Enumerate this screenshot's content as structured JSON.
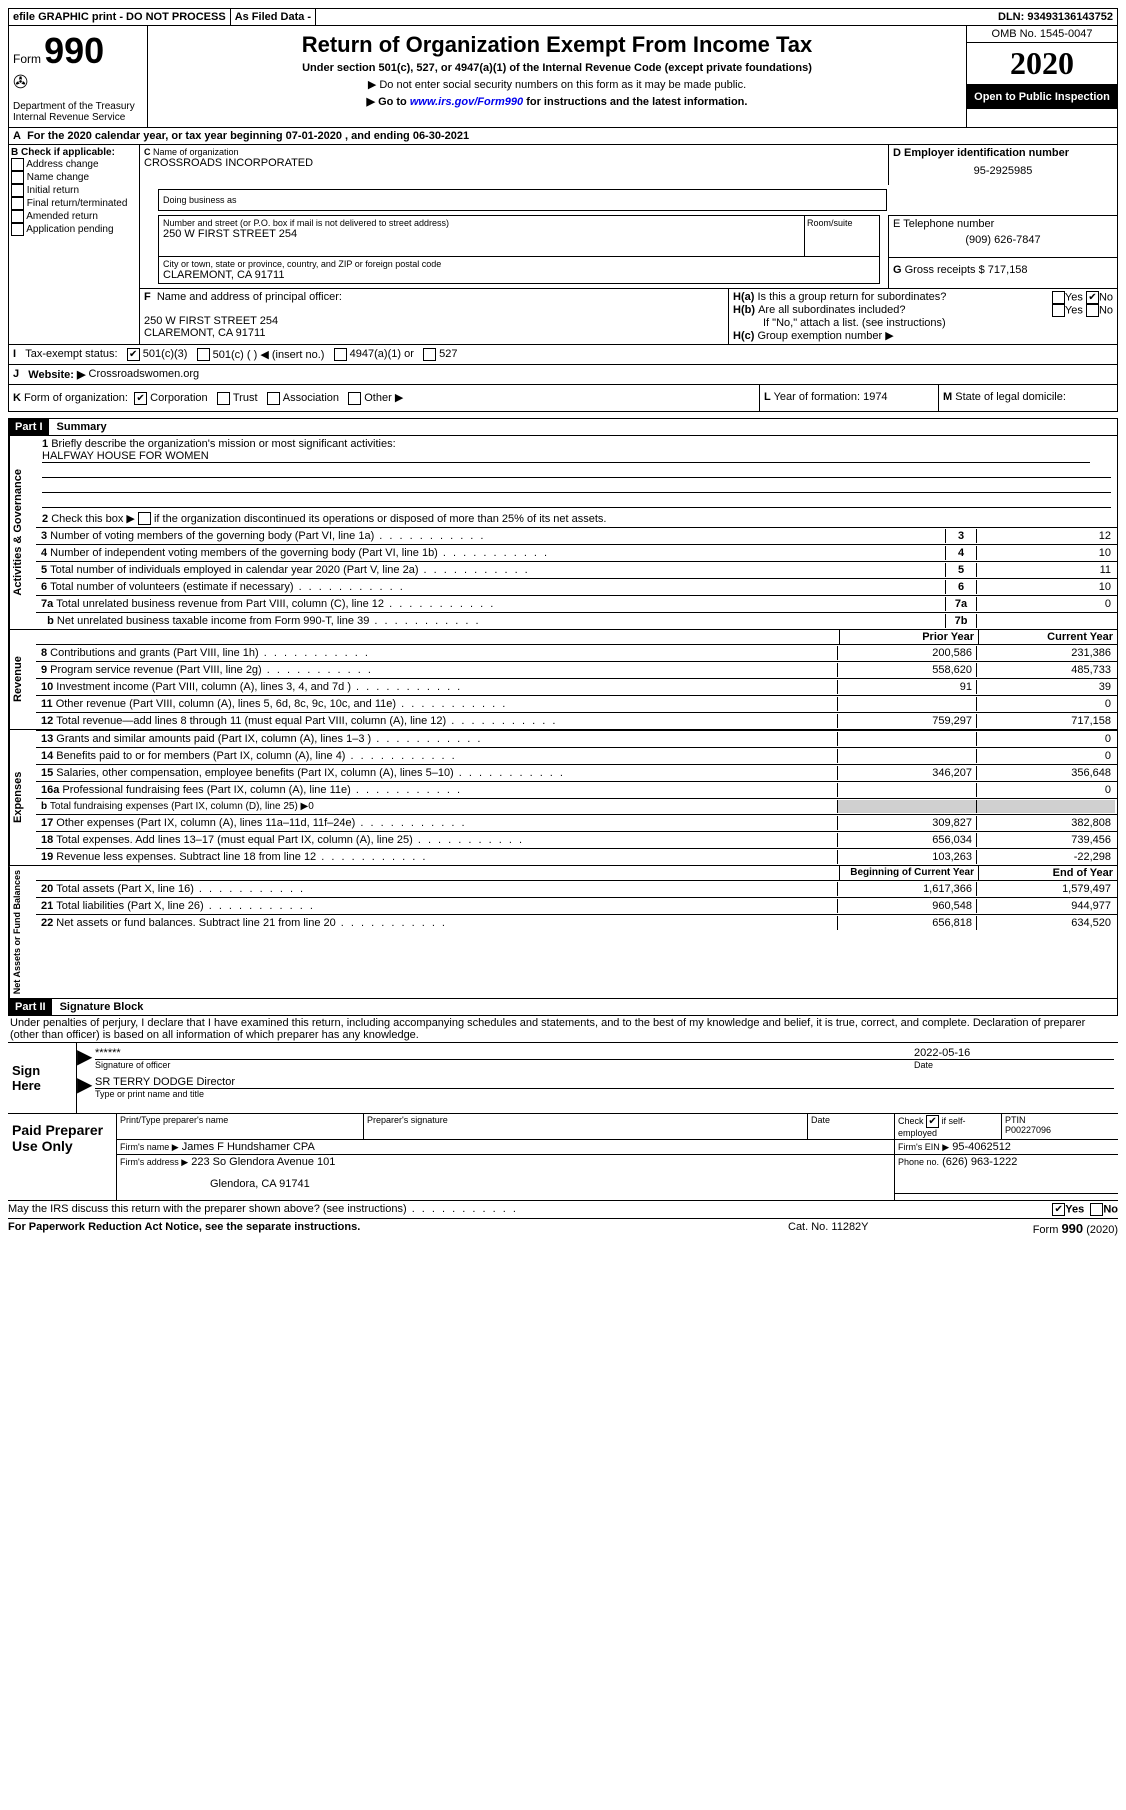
{
  "topbar": {
    "efile": "efile GRAPHIC print - DO NOT PROCESS",
    "asfiled": "As Filed Data -",
    "dln_label": "DLN:",
    "dln": "93493136143752"
  },
  "header": {
    "form_label": "Form",
    "form_no": "990",
    "dept1": "Department of the Treasury",
    "dept2": "Internal Revenue Service",
    "title": "Return of Organization Exempt From Income Tax",
    "sub1": "Under section 501(c), 527, or 4947(a)(1) of the Internal Revenue Code (except private foundations)",
    "sub2": "▶ Do not enter social security numbers on this form as it may be made public.",
    "sub3": "▶ Go to",
    "irs_link": "www.irs.gov/Form990",
    "sub3b": "for instructions and the latest information.",
    "omb": "OMB No. 1545-0047",
    "year": "2020",
    "open": "Open to Public Inspection"
  },
  "periodA": {
    "text": "For the 2020 calendar year, or tax year beginning 07-01-2020   , and ending 06-30-2021"
  },
  "boxB": {
    "label": "Check if applicable:",
    "opts": [
      "Address change",
      "Name change",
      "Initial return",
      "Final return/terminated",
      "Amended return",
      "Application pending"
    ]
  },
  "boxC": {
    "name_label": "Name of organization",
    "name": "CROSSROADS INCORPORATED",
    "dba_label": "Doing business as",
    "addr_label": "Number and street (or P.O. box if mail is not delivered to street address)",
    "room_label": "Room/suite",
    "addr": "250 W FIRST STREET 254",
    "city_label": "City or town, state or province, country, and ZIP or foreign postal code",
    "city": "CLAREMONT, CA  91711"
  },
  "boxD": {
    "label": "Employer identification number",
    "val": "95-2925985"
  },
  "boxE": {
    "label": "Telephone number",
    "val": "(909) 626-7847"
  },
  "boxG": {
    "label": "Gross receipts $",
    "val": "717,158"
  },
  "boxF": {
    "label": "Name and address of principal officer:",
    "line1": "250 W FIRST STREET 254",
    "line2": "CLAREMONT, CA  91711"
  },
  "boxH": {
    "a": "Is this a group return for subordinates?",
    "b": "Are all subordinates included?",
    "note": "If \"No,\" attach a list. (see instructions)",
    "c": "Group exemption number ▶",
    "yes": "Yes",
    "no": "No"
  },
  "boxI": {
    "label": "Tax-exempt status:",
    "o1": "501(c)(3)",
    "o2": "501(c) (   ) ◀ (insert no.)",
    "o3": "4947(a)(1) or",
    "o4": "527"
  },
  "boxJ": {
    "label": "Website: ▶",
    "val": "Crossroadswomen.org"
  },
  "boxK": {
    "label": "Form of organization:",
    "o1": "Corporation",
    "o2": "Trust",
    "o3": "Association",
    "o4": "Other ▶"
  },
  "boxL": {
    "label": "Year of formation:",
    "val": "1974"
  },
  "boxM": {
    "label": "State of legal domicile:"
  },
  "partI": {
    "title": "Part I",
    "heading": "Summary"
  },
  "summary": {
    "q1": "Briefly describe the organization's mission or most significant activities:",
    "mission": "HALFWAY HOUSE FOR WOMEN",
    "q2": "Check this box ▶",
    "q2b": "if the organization discontinued its operations or disposed of more than 25% of its net assets.",
    "lines": {
      "3": {
        "t": "Number of voting members of the governing body (Part VI, line 1a)",
        "v": "12"
      },
      "4": {
        "t": "Number of independent voting members of the governing body (Part VI, line 1b)",
        "v": "10"
      },
      "5": {
        "t": "Total number of individuals employed in calendar year 2020 (Part V, line 2a)",
        "v": "11"
      },
      "6": {
        "t": "Total number of volunteers (estimate if necessary)",
        "v": "10"
      },
      "7a": {
        "t": "Total unrelated business revenue from Part VIII, column (C), line 12",
        "v": "0"
      },
      "7b": {
        "t": "Net unrelated business taxable income from Form 990-T, line 39",
        "v": ""
      }
    }
  },
  "revenue": {
    "header_prior": "Prior Year",
    "header_curr": "Current Year",
    "rows": [
      {
        "n": "8",
        "t": "Contributions and grants (Part VIII, line 1h)",
        "p": "200,586",
        "c": "231,386"
      },
      {
        "n": "9",
        "t": "Program service revenue (Part VIII, line 2g)",
        "p": "558,620",
        "c": "485,733"
      },
      {
        "n": "10",
        "t": "Investment income (Part VIII, column (A), lines 3, 4, and 7d )",
        "p": "91",
        "c": "39"
      },
      {
        "n": "11",
        "t": "Other revenue (Part VIII, column (A), lines 5, 6d, 8c, 9c, 10c, and 11e)",
        "p": "",
        "c": "0"
      },
      {
        "n": "12",
        "t": "Total revenue—add lines 8 through 11 (must equal Part VIII, column (A), line 12)",
        "p": "759,297",
        "c": "717,158"
      }
    ]
  },
  "expenses": {
    "rows": [
      {
        "n": "13",
        "t": "Grants and similar amounts paid (Part IX, column (A), lines 1–3 )",
        "p": "",
        "c": "0"
      },
      {
        "n": "14",
        "t": "Benefits paid to or for members (Part IX, column (A), line 4)",
        "p": "",
        "c": "0"
      },
      {
        "n": "15",
        "t": "Salaries, other compensation, employee benefits (Part IX, column (A), lines 5–10)",
        "p": "346,207",
        "c": "356,648"
      },
      {
        "n": "16a",
        "t": "Professional fundraising fees (Part IX, column (A), line 11e)",
        "p": "",
        "c": "0"
      },
      {
        "n": "b",
        "t": "Total fundraising expenses (Part IX, column (D), line 25) ▶0",
        "p": "",
        "c": "",
        "shadeRight": true,
        "small": true
      },
      {
        "n": "17",
        "t": "Other expenses (Part IX, column (A), lines 11a–11d, 11f–24e)",
        "p": "309,827",
        "c": "382,808"
      },
      {
        "n": "18",
        "t": "Total expenses. Add lines 13–17 (must equal Part IX, column (A), line 25)",
        "p": "656,034",
        "c": "739,456"
      },
      {
        "n": "19",
        "t": "Revenue less expenses. Subtract line 18 from line 12",
        "p": "103,263",
        "c": "-22,298"
      }
    ]
  },
  "netassets": {
    "header_prior": "Beginning of Current Year",
    "header_curr": "End of Year",
    "rows": [
      {
        "n": "20",
        "t": "Total assets (Part X, line 16)",
        "p": "1,617,366",
        "c": "1,579,497"
      },
      {
        "n": "21",
        "t": "Total liabilities (Part X, line 26)",
        "p": "960,548",
        "c": "944,977"
      },
      {
        "n": "22",
        "t": "Net assets or fund balances. Subtract line 21 from line 20",
        "p": "656,818",
        "c": "634,520"
      }
    ]
  },
  "sidelabels": {
    "gov": "Activities & Governance",
    "rev": "Revenue",
    "exp": "Expenses",
    "net": "Net Assets or Fund Balances"
  },
  "partII": {
    "title": "Part II",
    "heading": "Signature Block"
  },
  "perjury": "Under penalties of perjury, I declare that I have examined this return, including accompanying schedules and statements, and to the best of my knowledge and belief, it is true, correct, and complete. Declaration of preparer (other than officer) is based on all information of which preparer has any knowledge.",
  "sign": {
    "label": "Sign Here",
    "stars": "******",
    "sig_label": "Signature of officer",
    "date": "2022-05-16",
    "date_label": "Date",
    "name": "SR TERRY DODGE Director",
    "name_label": "Type or print name and title"
  },
  "paid": {
    "label": "Paid Preparer Use Only",
    "h1": "Print/Type preparer's name",
    "h2": "Preparer's signature",
    "h3": "Date",
    "check": "Check",
    "check_if": "if self-employed",
    "ptin_label": "PTIN",
    "ptin": "P00227096",
    "firm_name_label": "Firm's name    ▶",
    "firm_name": "James F Hundshamer CPA",
    "firm_ein_label": "Firm's EIN ▶",
    "firm_ein": "95-4062512",
    "firm_addr_label": "Firm's address ▶",
    "firm_addr1": "223 So Glendora Avenue 101",
    "firm_addr2": "Glendora, CA  91741",
    "phone_label": "Phone no.",
    "phone": "(626) 963-1222"
  },
  "footer": {
    "q": "May the IRS discuss this return with the preparer shown above? (see instructions)",
    "yes": "Yes",
    "no": "No",
    "pra": "For Paperwork Reduction Act Notice, see the separate instructions.",
    "cat": "Cat. No. 11282Y",
    "form": "Form",
    "form_no": "990",
    "form_yr": "(2020)"
  }
}
